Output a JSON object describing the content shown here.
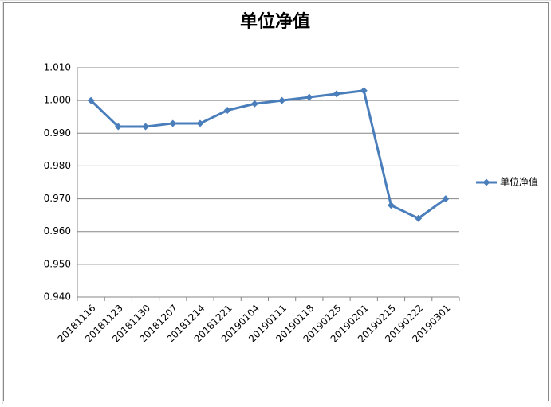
{
  "chart_data": {
    "type": "line",
    "title": "单位净值",
    "categories": [
      "20181116",
      "20181123",
      "20181130",
      "20181207",
      "20181214",
      "20181221",
      "20190104",
      "20190111",
      "20190118",
      "20190125",
      "20190201",
      "20190215",
      "20190222",
      "20190301"
    ],
    "series": [
      {
        "name": "单位净值",
        "color": "#4a7ebb",
        "values": [
          1.0,
          0.992,
          0.992,
          0.993,
          0.993,
          0.997,
          0.999,
          1.0,
          1.001,
          1.002,
          1.003,
          0.968,
          0.964,
          0.97
        ]
      }
    ],
    "ylim": [
      0.94,
      1.01
    ],
    "yticks": [
      {
        "value": 0.94,
        "label": "0.940"
      },
      {
        "value": 0.95,
        "label": "0.950"
      },
      {
        "value": 0.96,
        "label": "0.960"
      },
      {
        "value": 0.97,
        "label": "0.970"
      },
      {
        "value": 0.98,
        "label": "0.980"
      },
      {
        "value": 0.99,
        "label": "0.990"
      },
      {
        "value": 1.0,
        "label": "1.000"
      },
      {
        "value": 1.01,
        "label": "1.010"
      }
    ],
    "grid": true,
    "legend": "right"
  }
}
